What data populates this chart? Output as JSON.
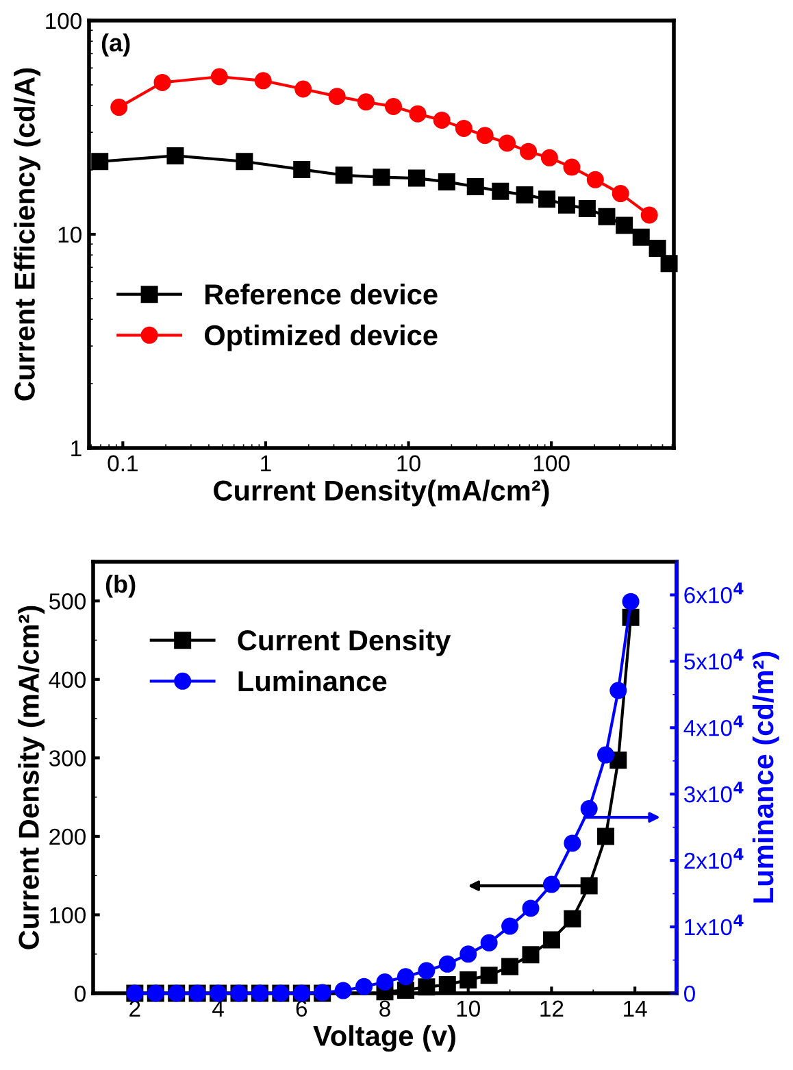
{
  "chart_data": [
    {
      "type": "line",
      "xlabel": "Current Density(mA/cm²)",
      "ylabel": "Current Efficiency (cd/A)",
      "log": "xy",
      "xlim": [
        0.058,
        720
      ],
      "ylim": [
        1,
        100
      ],
      "xticks": [
        0.1,
        1,
        10,
        100
      ],
      "yticks": [
        1,
        10,
        100
      ],
      "legend": "center left",
      "grid": false,
      "annotations": [
        "(a)"
      ],
      "series": [
        {
          "name": "Reference device",
          "color": "#000000",
          "marker": "square",
          "x": [
            0.069,
            0.233,
            0.71,
            1.79,
            3.53,
            6.46,
            11.4,
            18.5,
            29.4,
            44,
            65,
            93,
            128,
            178,
            244,
            324,
            425,
            553,
            667
          ],
          "values": [
            21.9,
            23.3,
            21.9,
            20.1,
            18.9,
            18.5,
            18.3,
            17.6,
            16.7,
            15.9,
            15.3,
            14.6,
            13.7,
            13.2,
            12.1,
            11.0,
            9.7,
            8.6,
            7.3
          ]
        },
        {
          "name": "Optimized device",
          "color": "#ff0000",
          "marker": "circle",
          "x": [
            0.094,
            0.189,
            0.474,
            0.96,
            1.83,
            3.16,
            5.04,
            7.84,
            11.6,
            17.1,
            24.4,
            34.3,
            49,
            69,
            97,
            139,
            203,
            305,
            485
          ],
          "values": [
            39.3,
            51.3,
            54.6,
            52.3,
            47.8,
            44.2,
            41.6,
            39.6,
            36.6,
            34.2,
            31.3,
            29.0,
            26.7,
            24.4,
            22.8,
            20.6,
            18.0,
            15.5,
            12.3
          ]
        }
      ]
    },
    {
      "type": "line",
      "xlabel": "Voltage (v)",
      "ylabel": "Current Density (mA/cm²)",
      "y2label": "Luminance (cd/m²)",
      "xlim": [
        1,
        15
      ],
      "ylim": [
        0,
        550
      ],
      "y2lim": [
        0,
        65000
      ],
      "xticks": [
        2,
        4,
        6,
        8,
        10,
        12,
        14
      ],
      "yticks": [
        0,
        100,
        200,
        300,
        400,
        500
      ],
      "y2ticks": [
        0,
        {
          "value": 10000,
          "label": "1x10$^{4}$"
        },
        {
          "value": 20000,
          "label": "2x10$^{4}$"
        },
        {
          "value": 30000,
          "label": "3x10$^{4}$"
        },
        {
          "value": 40000,
          "label": "4x10$^{4}$"
        },
        {
          "value": 50000,
          "label": "5x10$^{4}$"
        },
        {
          "value": 60000,
          "label": "6x10$^{4}$"
        }
      ],
      "legend": "top left",
      "grid": false,
      "annotations": [
        "(b)"
      ],
      "series": [
        {
          "name": "Current Density",
          "color": "#000000",
          "marker": "square",
          "x": [
            2,
            2.5,
            3,
            3.5,
            4,
            4.5,
            5,
            5.5,
            6,
            6.5,
            7,
            7.5,
            8,
            8.5,
            9,
            9.5,
            10,
            10.5,
            11,
            11.5,
            12,
            12.5,
            12.9,
            13.3,
            13.6,
            13.9
          ],
          "values": [
            0,
            0,
            0,
            0,
            0,
            0,
            0,
            0,
            0,
            0,
            null,
            null,
            2,
            4,
            8,
            11,
            17,
            23,
            34,
            49,
            68,
            95,
            137,
            200,
            297,
            479
          ]
        },
        {
          "name": "Luminance",
          "color": "#0000ff",
          "marker": "circle",
          "axis": "y2",
          "x": [
            2,
            2.5,
            3,
            3.5,
            4,
            4.5,
            5,
            5.5,
            6,
            6.5,
            7,
            7.5,
            8,
            8.5,
            9,
            9.5,
            10,
            10.5,
            11,
            11.5,
            12,
            12.5,
            12.9,
            13.3,
            13.6,
            13.9
          ],
          "values": [
            0,
            0,
            0,
            0,
            0,
            0,
            0,
            0,
            0,
            100,
            400,
            1000,
            1700,
            2500,
            3400,
            4400,
            5900,
            7600,
            10100,
            12800,
            16400,
            22600,
            27800,
            35900,
            45600,
            59000
          ]
        }
      ]
    }
  ]
}
